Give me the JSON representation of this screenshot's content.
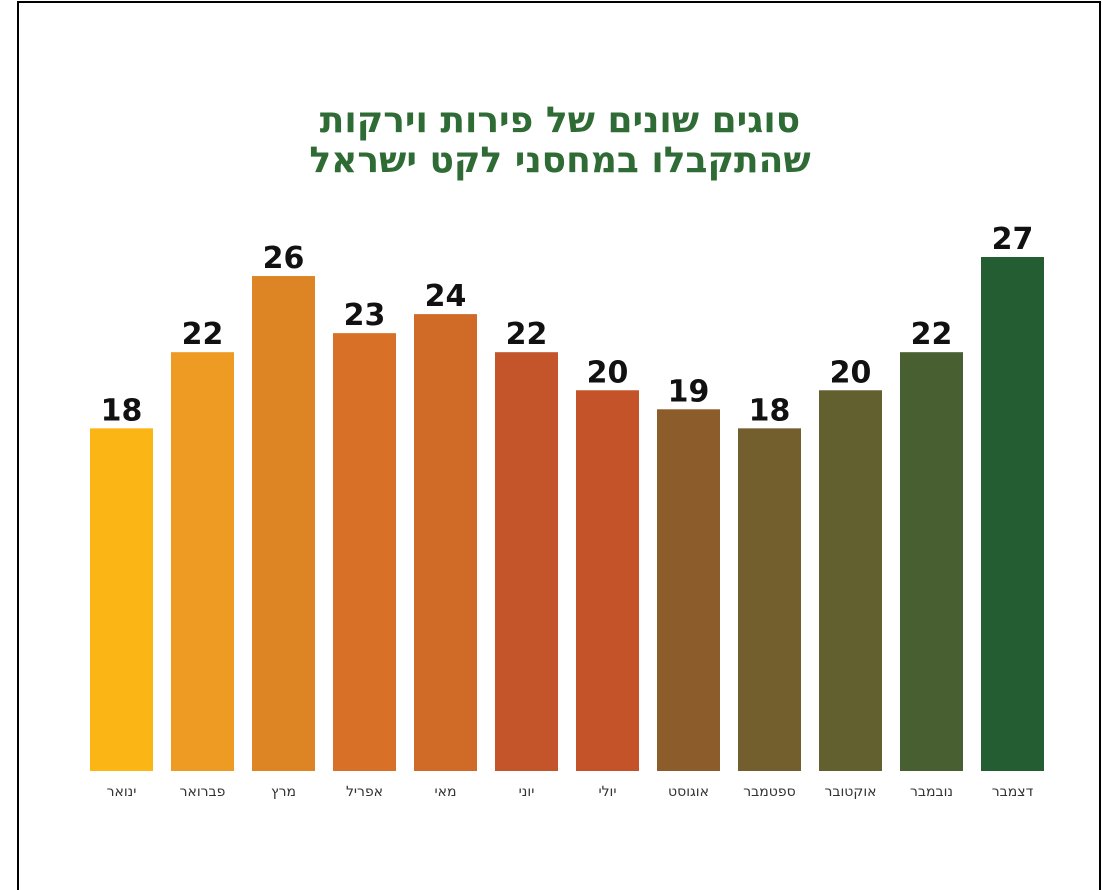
{
  "chart_data": {
    "type": "bar",
    "title": [
      "סוגים שונים של פירות וירקות",
      "שהתקבלו במחסני לקט ישראל"
    ],
    "categories": [
      "ינואר",
      "פברואר",
      "מרץ",
      "אפריל",
      "מאי",
      "יוני",
      "יולי",
      "אוגוסט",
      "ספטמבר",
      "אוקטובר",
      "נובמבר",
      "דצמבר"
    ],
    "values": [
      18,
      22,
      26,
      23,
      24,
      22,
      20,
      19,
      18,
      20,
      22,
      27
    ],
    "colors": [
      "#fbb615",
      "#ed9b22",
      "#dd8525",
      "#d97027",
      "#d06a27",
      "#c4552a",
      "#c4532a",
      "#8c5c2b",
      "#735f2e",
      "#636030",
      "#485f31",
      "#245d32"
    ]
  }
}
